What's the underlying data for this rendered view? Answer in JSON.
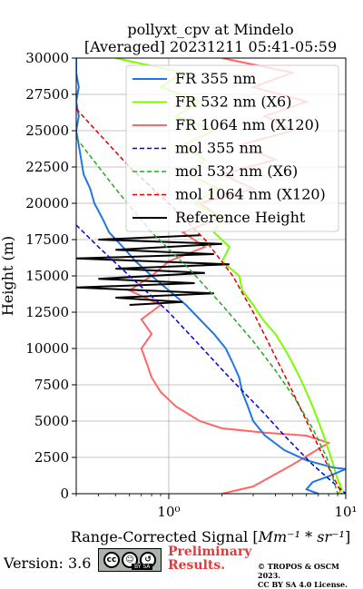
{
  "chart_data": {
    "type": "line",
    "title": "pollyxt_cpv at Mindelo",
    "subtitle": "[Averaged] 20231211 05:41-05:59",
    "ylabel": "Height (m)",
    "xlabel_prefix": "Range-Corrected Signal [",
    "xlabel_math": "Mm⁻¹ * sr⁻¹",
    "xlabel_suffix": "]",
    "xscale": "log",
    "xlim": [
      0.3,
      10
    ],
    "ylim": [
      0,
      30000
    ],
    "xticks": [
      {
        "value": 1,
        "label": "10⁰"
      },
      {
        "value": 10,
        "label": "10¹"
      }
    ],
    "yticks": [
      0,
      2500,
      5000,
      7500,
      10000,
      12500,
      15000,
      17500,
      20000,
      22500,
      25000,
      27500,
      30000
    ],
    "grid": true,
    "legend_position": "upper-right",
    "series": [
      {
        "name": "FR 355 nm",
        "color": "#1f77e4",
        "style": "solid",
        "points": [
          [
            0.3,
            30000
          ],
          [
            0.3,
            29000
          ],
          [
            0.31,
            28000
          ],
          [
            0.3,
            27000
          ],
          [
            0.31,
            26000
          ],
          [
            0.3,
            25000
          ],
          [
            0.31,
            24000
          ],
          [
            0.32,
            23000
          ],
          [
            0.33,
            22000
          ],
          [
            0.36,
            21000
          ],
          [
            0.38,
            20000
          ],
          [
            0.42,
            19000
          ],
          [
            0.46,
            18000
          ],
          [
            0.55,
            17000
          ],
          [
            0.65,
            16000
          ],
          [
            0.8,
            15000
          ],
          [
            1.0,
            14000
          ],
          [
            1.25,
            13000
          ],
          [
            1.5,
            12000
          ],
          [
            1.8,
            11000
          ],
          [
            2.1,
            10000
          ],
          [
            2.3,
            9000
          ],
          [
            2.5,
            8000
          ],
          [
            2.6,
            7000
          ],
          [
            2.8,
            6000
          ],
          [
            3.0,
            5000
          ],
          [
            3.5,
            4000
          ],
          [
            4.5,
            3000
          ],
          [
            6.0,
            2300
          ],
          [
            8.5,
            1800
          ],
          [
            10,
            1700
          ],
          [
            8.0,
            1200
          ],
          [
            6.5,
            800
          ],
          [
            6.0,
            300
          ],
          [
            7.0,
            0
          ]
        ]
      },
      {
        "name": "FR 532 nm (X6)",
        "color": "#7cfc00",
        "style": "solid",
        "points": [
          [
            0.5,
            30000
          ],
          [
            1.2,
            29000
          ],
          [
            0.9,
            28000
          ],
          [
            1.5,
            27000
          ],
          [
            1.1,
            26000
          ],
          [
            1.8,
            25000
          ],
          [
            1.2,
            24000
          ],
          [
            1.6,
            23000
          ],
          [
            1.3,
            22000
          ],
          [
            1.9,
            21000
          ],
          [
            1.4,
            20000
          ],
          [
            2.0,
            19000
          ],
          [
            1.8,
            18000
          ],
          [
            2.2,
            17000
          ],
          [
            2.0,
            16000
          ],
          [
            2.5,
            15000
          ],
          [
            2.6,
            14000
          ],
          [
            3.0,
            13000
          ],
          [
            3.4,
            12000
          ],
          [
            4.0,
            11000
          ],
          [
            4.5,
            10000
          ],
          [
            5.0,
            9000
          ],
          [
            5.5,
            8000
          ],
          [
            6.0,
            7000
          ],
          [
            6.5,
            6000
          ],
          [
            7.0,
            5000
          ],
          [
            7.5,
            4000
          ],
          [
            8.0,
            3000
          ],
          [
            8.5,
            2000
          ],
          [
            9.0,
            1000
          ],
          [
            9.5,
            300
          ],
          [
            9.0,
            0
          ]
        ]
      },
      {
        "name": "FR 1064 nm (X120)",
        "color": "#ff6666",
        "style": "solid",
        "points": [
          [
            2.0,
            30000
          ],
          [
            5.0,
            29000
          ],
          [
            3.0,
            28000
          ],
          [
            6.0,
            27000
          ],
          [
            3.5,
            26000
          ],
          [
            5.0,
            25000
          ],
          [
            2.5,
            24000
          ],
          [
            4.0,
            23000
          ],
          [
            2.0,
            22000
          ],
          [
            3.0,
            21000
          ],
          [
            1.5,
            20000
          ],
          [
            2.0,
            19000
          ],
          [
            1.2,
            18000
          ],
          [
            1.6,
            17000
          ],
          [
            1.0,
            16000
          ],
          [
            0.8,
            15000
          ],
          [
            0.6,
            14000
          ],
          [
            0.9,
            13000
          ],
          [
            0.7,
            12000
          ],
          [
            0.8,
            11000
          ],
          [
            0.7,
            10000
          ],
          [
            0.75,
            9000
          ],
          [
            0.8,
            8000
          ],
          [
            0.9,
            7000
          ],
          [
            1.1,
            6000
          ],
          [
            1.5,
            5000
          ],
          [
            2.0,
            4500
          ],
          [
            3.5,
            4200
          ],
          [
            6.0,
            4000
          ],
          [
            8.0,
            3500
          ],
          [
            5.0,
            2000
          ],
          [
            3.0,
            500
          ],
          [
            2.0,
            0
          ]
        ]
      },
      {
        "name": "mol 355 nm",
        "color": "#0000dd",
        "style": "dashed",
        "points": [
          [
            0.3,
            18500
          ],
          [
            0.4,
            17000
          ],
          [
            0.6,
            15000
          ],
          [
            1.0,
            12500
          ],
          [
            1.5,
            10200
          ],
          [
            2.2,
            8000
          ],
          [
            3.3,
            5800
          ],
          [
            4.5,
            4000
          ],
          [
            6.5,
            2000
          ],
          [
            10,
            0
          ]
        ]
      },
      {
        "name": "mol 532 nm (X6)",
        "color": "#22aa22",
        "style": "dashed",
        "points": [
          [
            0.3,
            24500
          ],
          [
            0.5,
            21000
          ],
          [
            0.8,
            18000
          ],
          [
            1.3,
            15500
          ],
          [
            2.0,
            13000
          ],
          [
            3.0,
            10500
          ],
          [
            4.0,
            8500
          ],
          [
            5.2,
            6500
          ],
          [
            6.5,
            4500
          ],
          [
            7.8,
            2500
          ],
          [
            9.0,
            0
          ]
        ]
      },
      {
        "name": "mol 1064 nm (X120)",
        "color": "#dd0000",
        "style": "dashed",
        "points": [
          [
            0.3,
            26500
          ],
          [
            0.6,
            22500
          ],
          [
            1.0,
            20000
          ],
          [
            1.6,
            17500
          ],
          [
            2.3,
            15000
          ],
          [
            3.0,
            12500
          ],
          [
            3.8,
            10000
          ],
          [
            4.8,
            7500
          ],
          [
            6.0,
            5000
          ],
          [
            7.5,
            2500
          ],
          [
            9.5,
            0
          ]
        ]
      },
      {
        "name": "Reference Height",
        "color": "#000000",
        "style": "solid",
        "points": [
          [
            1.5,
            17800
          ],
          [
            0.4,
            17500
          ],
          [
            2.0,
            17200
          ],
          [
            0.5,
            16800
          ],
          [
            1.8,
            16500
          ],
          [
            0.3,
            16200
          ],
          [
            2.2,
            15800
          ],
          [
            0.5,
            15500
          ],
          [
            1.6,
            15200
          ],
          [
            0.4,
            14800
          ],
          [
            1.4,
            14500
          ],
          [
            0.3,
            14200
          ],
          [
            1.8,
            13800
          ],
          [
            0.5,
            13500
          ],
          [
            1.2,
            13200
          ],
          [
            0.6,
            13000
          ]
        ]
      }
    ]
  },
  "footer": {
    "version": "Version: 3.6",
    "cc_text": "BY   SA",
    "preliminary_line1": "Preliminary",
    "preliminary_line2": "Results.",
    "copyright_line1": "© TROPOS & OSCM 2023.",
    "copyright_line2": "CC BY SA 4.0 License."
  }
}
